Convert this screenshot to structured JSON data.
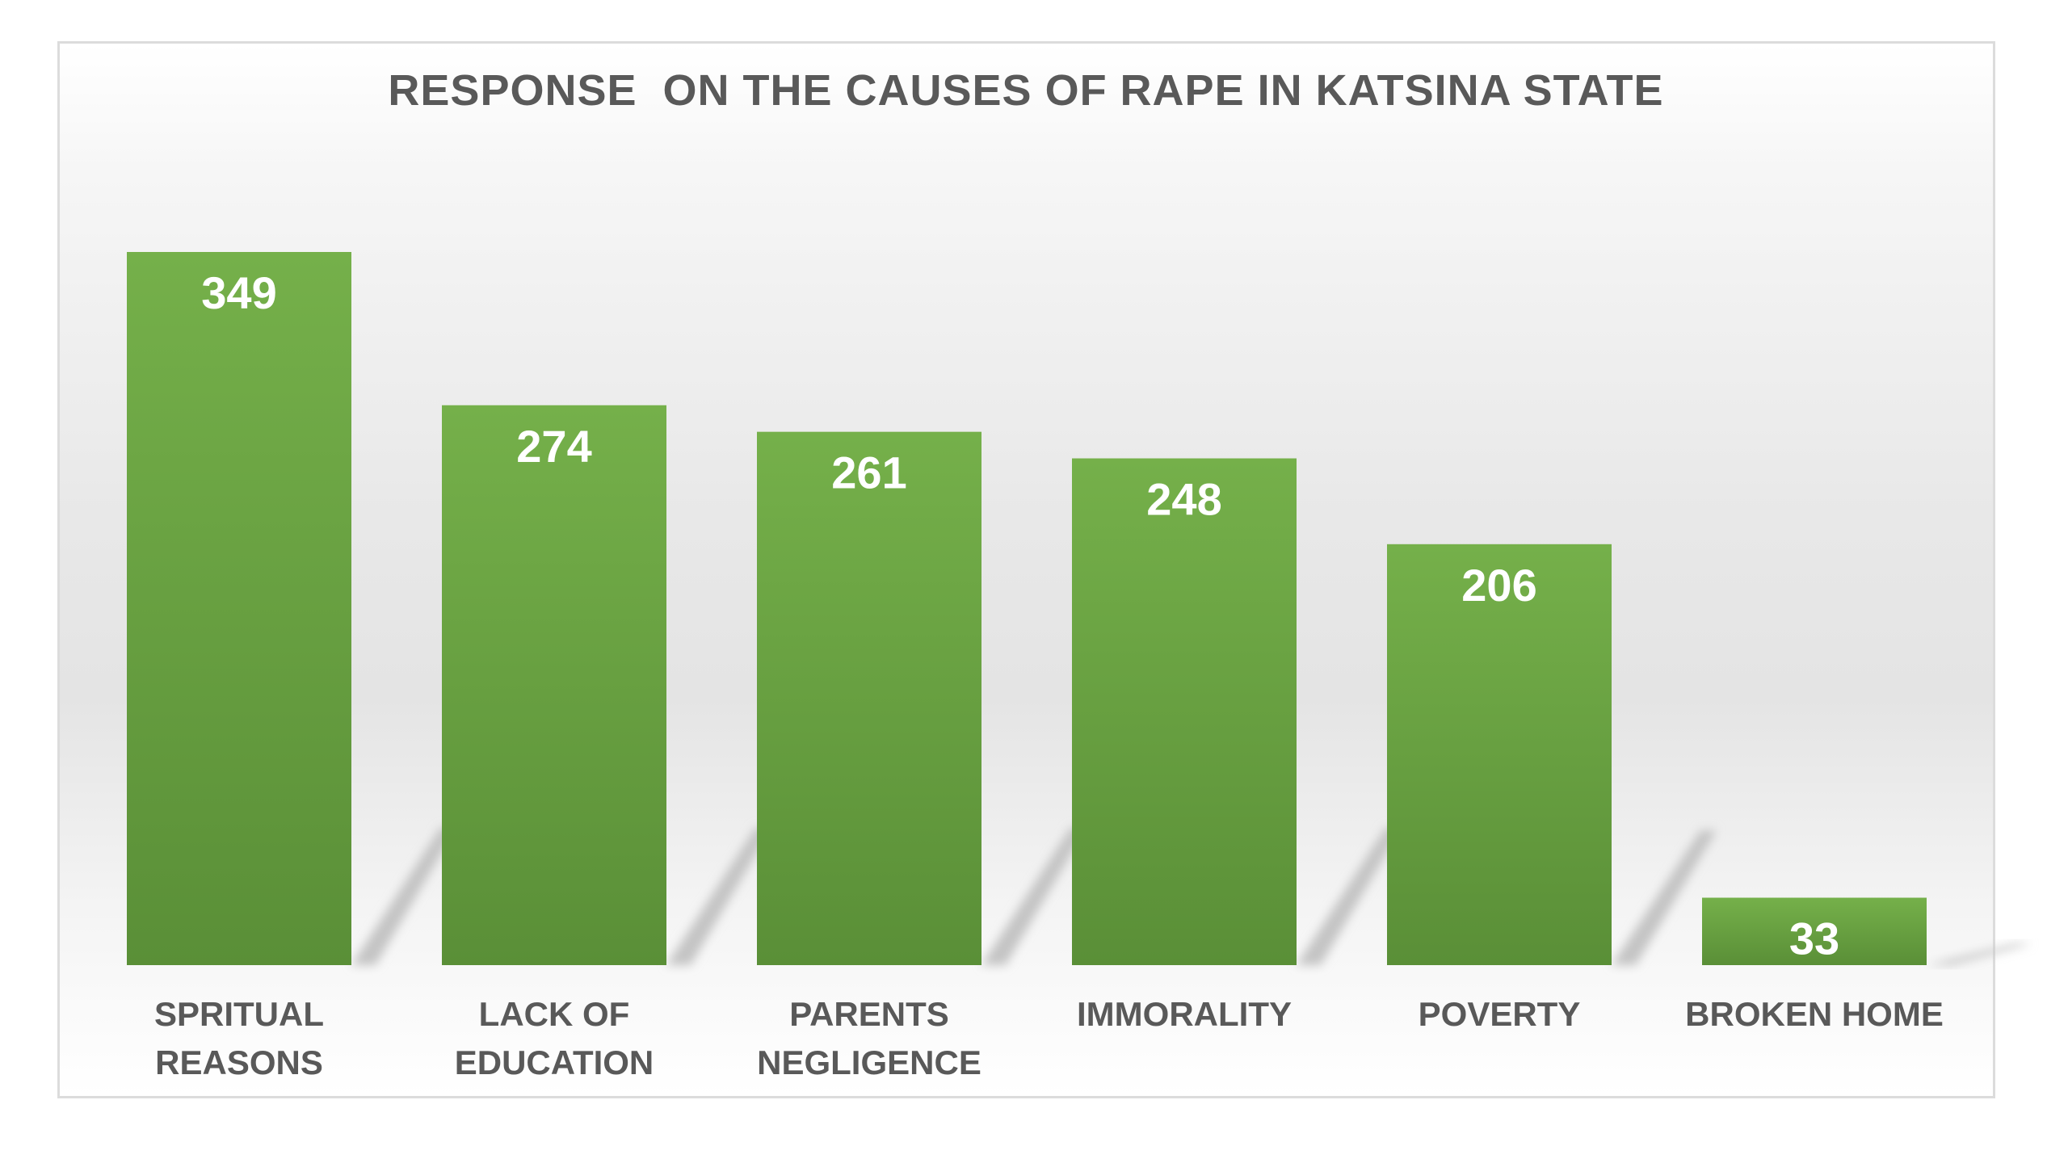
{
  "chart_data": {
    "type": "bar",
    "title": "RESPONSE  ON THE CAUSES OF RAPE IN KATSINA STATE",
    "xlabel": "",
    "ylabel": "",
    "categories": [
      [
        "SPRITUAL",
        "REASONS"
      ],
      [
        "LACK OF",
        "EDUCATION"
      ],
      [
        "PARENTS",
        "NEGLIGENCE"
      ],
      [
        "IMMORALITY"
      ],
      [
        "POVERTY"
      ],
      [
        "BROKEN HOME"
      ]
    ],
    "values": [
      349,
      274,
      261,
      248,
      206,
      33
    ],
    "ylim": [
      0,
      349
    ],
    "grid": false,
    "legend": "none",
    "bar_color_top": "#75b04a",
    "bar_color_bottom": "#5a8f37",
    "shadow_color": "#c4c4c4"
  }
}
